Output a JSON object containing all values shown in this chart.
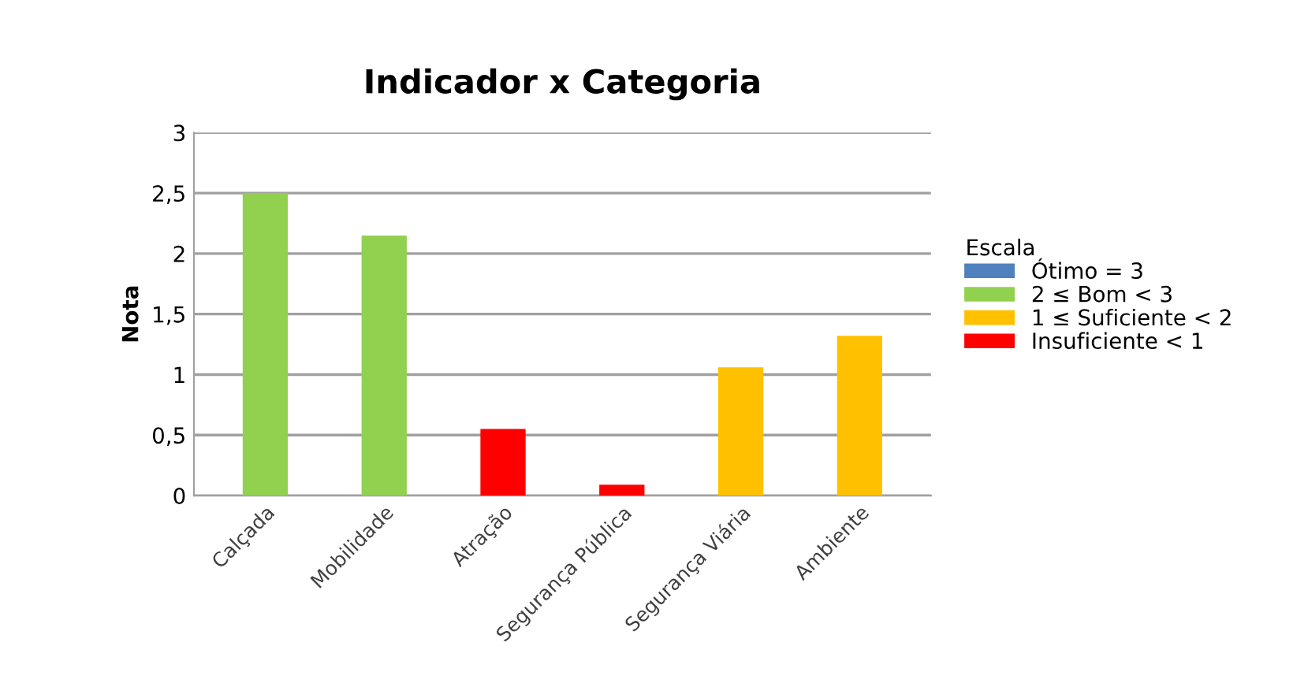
{
  "chart_data": {
    "type": "bar",
    "title": "Indicador x Categoria",
    "ylabel": "Nota",
    "legend_title": "Escala",
    "categories": [
      "Calçada",
      "Mobilidade",
      "Atração",
      "Segurança Pública",
      "Segurança Viária",
      "Ambiente"
    ],
    "series": [
      {
        "name": "Ótimo = 3",
        "color": "#4f81bd",
        "values": [
          null,
          null,
          null,
          null,
          null,
          null
        ]
      },
      {
        "name": "2 ≤ Bom < 3",
        "color": "#92d050",
        "values": [
          2.5,
          2.15,
          null,
          null,
          null,
          null
        ]
      },
      {
        "name": "1 ≤ Suficiente < 2",
        "color": "#ffc000",
        "values": [
          null,
          null,
          null,
          null,
          1.06,
          1.32
        ]
      },
      {
        "name": "Insuficiente < 1",
        "color": "#ff0000",
        "values": [
          null,
          null,
          0.55,
          0.09,
          null,
          null
        ]
      }
    ],
    "ylim": [
      0,
      3
    ],
    "yticks": [
      0,
      {
        "value": 0.5,
        "label": "0,5"
      },
      1,
      {
        "value": 1.5,
        "label": "1,5"
      },
      2,
      {
        "value": 2.5,
        "label": "2,5"
      },
      3
    ],
    "grid": "y",
    "legend": "right"
  }
}
